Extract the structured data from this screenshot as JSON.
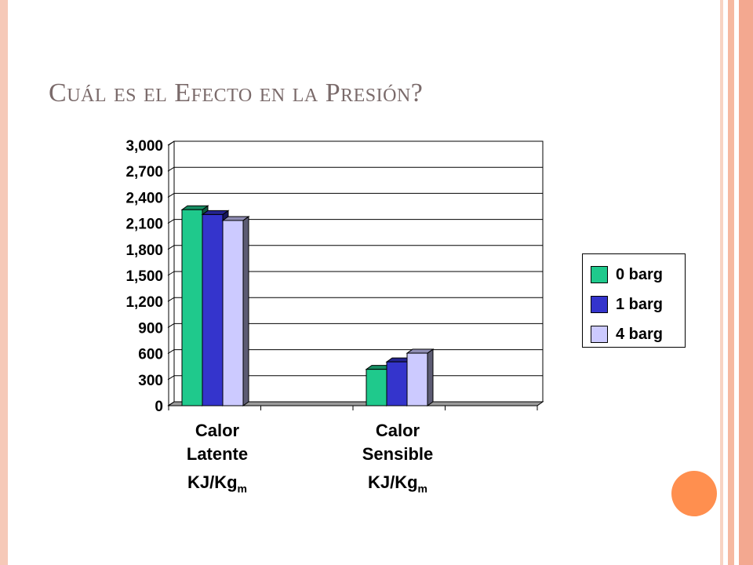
{
  "slide": {
    "title_parts": [
      {
        "text": "C",
        "sc": false
      },
      {
        "text": "uál es el ",
        "sc": true
      },
      {
        "text": "E",
        "sc": false
      },
      {
        "text": "fecto en la ",
        "sc": true
      },
      {
        "text": "P",
        "sc": false
      },
      {
        "text": "resión",
        "sc": true
      },
      {
        "text": "?",
        "sc": false
      }
    ]
  },
  "chart_data": {
    "type": "bar",
    "categories": [
      "Calor Latente",
      "Calor Sensible"
    ],
    "category_labels": [
      {
        "line1": "Calor",
        "line2": "Latente",
        "unit": "KJ/Kg",
        "unit_sub": "m"
      },
      {
        "line1": "Calor",
        "line2": "Sensible",
        "unit": "KJ/Kg",
        "unit_sub": "m"
      }
    ],
    "series": [
      {
        "name": "0 barg",
        "values": [
          2257,
          419
        ],
        "color": "#1fc98c"
      },
      {
        "name": "1 barg",
        "values": [
          2201,
          505
        ],
        "color": "#3434cc"
      },
      {
        "name": "4 barg",
        "values": [
          2133,
          605
        ],
        "color": "#cccaff"
      }
    ],
    "yticks": [
      "0",
      "300",
      "600",
      "900",
      "1,200",
      "1,500",
      "1,800",
      "2,100",
      "2,400",
      "2,700",
      "3,000"
    ],
    "ylim": [
      0,
      3000
    ],
    "grid": true,
    "legend_position": "right",
    "style": "3d-bar"
  }
}
